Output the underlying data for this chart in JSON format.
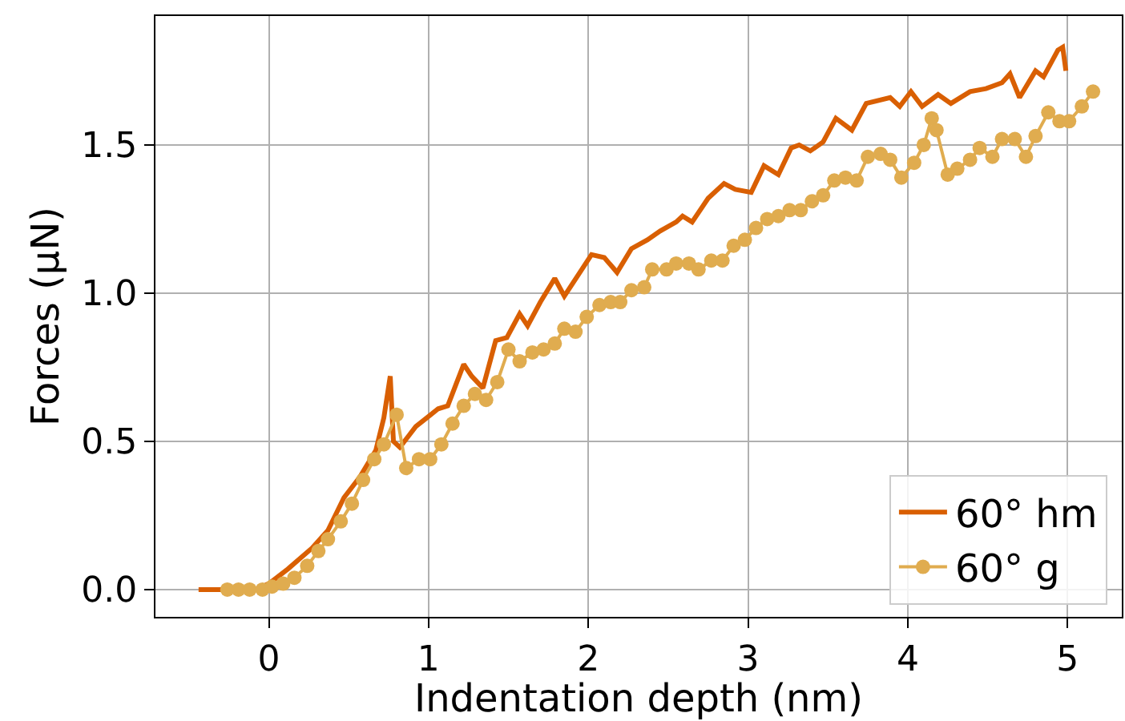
{
  "chart_data": {
    "type": "line",
    "xlabel": "Indentation depth (nm)",
    "ylabel": "Forces (μN)",
    "xlim": [
      -0.71,
      5.34
    ],
    "ylim": [
      -0.092,
      1.935
    ],
    "xticks": [
      0,
      1,
      2,
      3,
      4,
      5
    ],
    "yticks": [
      {
        "value": 0,
        "label": "0.0"
      },
      0.5,
      {
        "value": 1,
        "label": "1.0"
      },
      1.5
    ],
    "grid": true,
    "legend": "bottom right",
    "line_style": "solid",
    "series": [
      {
        "name": "60° hm",
        "color": "#d95f02",
        "marker": "none",
        "x": [
          -0.44,
          -0.28,
          -0.08,
          0,
          0.12,
          0.27,
          0.37,
          0.47,
          0.57,
          0.67,
          0.72,
          0.76,
          0.78,
          0.82,
          0.92,
          0.99,
          1.06,
          1.12,
          1.17,
          1.22,
          1.27,
          1.34,
          1.42,
          1.49,
          1.57,
          1.62,
          1.7,
          1.79,
          1.85,
          2.02,
          2.1,
          2.18,
          2.27,
          2.37,
          2.45,
          2.55,
          2.59,
          2.65,
          2.75,
          2.85,
          2.92,
          3.02,
          3.1,
          3.19,
          3.27,
          3.32,
          3.39,
          3.47,
          3.55,
          3.65,
          3.74,
          3.89,
          3.95,
          4.02,
          4.09,
          4.19,
          4.27,
          4.39,
          4.49,
          4.59,
          4.64,
          4.7,
          4.8,
          4.85,
          4.94,
          4.97,
          4.99
        ],
        "values": [
          0,
          0,
          0,
          0.02,
          0.07,
          0.14,
          0.2,
          0.31,
          0.38,
          0.47,
          0.58,
          0.72,
          0.5,
          0.48,
          0.55,
          0.58,
          0.61,
          0.62,
          0.69,
          0.76,
          0.72,
          0.68,
          0.84,
          0.85,
          0.93,
          0.89,
          0.97,
          1.05,
          0.99,
          1.13,
          1.12,
          1.07,
          1.15,
          1.18,
          1.21,
          1.24,
          1.26,
          1.24,
          1.32,
          1.37,
          1.35,
          1.34,
          1.43,
          1.4,
          1.49,
          1.5,
          1.48,
          1.51,
          1.59,
          1.55,
          1.64,
          1.66,
          1.63,
          1.68,
          1.63,
          1.67,
          1.64,
          1.68,
          1.69,
          1.71,
          1.74,
          1.66,
          1.75,
          1.73,
          1.82,
          1.83,
          1.75
        ]
      },
      {
        "name": "60° g",
        "color": "#e0ac4f",
        "marker": "circle",
        "x": [
          -0.26,
          -0.19,
          -0.12,
          -0.04,
          0.02,
          0.09,
          0.16,
          0.24,
          0.31,
          0.37,
          0.45,
          0.52,
          0.59,
          0.66,
          0.72,
          0.8,
          0.86,
          0.94,
          1.01,
          1.08,
          1.15,
          1.22,
          1.29,
          1.36,
          1.43,
          1.5,
          1.57,
          1.65,
          1.72,
          1.79,
          1.85,
          1.92,
          1.99,
          2.07,
          2.14,
          2.2,
          2.27,
          2.35,
          2.4,
          2.49,
          2.55,
          2.63,
          2.69,
          2.77,
          2.84,
          2.91,
          2.98,
          3.05,
          3.12,
          3.19,
          3.26,
          3.33,
          3.4,
          3.47,
          3.54,
          3.61,
          3.68,
          3.75,
          3.83,
          3.89,
          3.96,
          4.04,
          4.1,
          4.15,
          4.18,
          4.25,
          4.31,
          4.39,
          4.45,
          4.53,
          4.59,
          4.67,
          4.74,
          4.8,
          4.88,
          4.95,
          5.01,
          5.09,
          5.16
        ],
        "values": [
          0,
          0,
          0,
          0,
          0.01,
          0.02,
          0.04,
          0.08,
          0.13,
          0.17,
          0.23,
          0.29,
          0.37,
          0.44,
          0.49,
          0.59,
          0.41,
          0.44,
          0.44,
          0.49,
          0.56,
          0.62,
          0.66,
          0.64,
          0.7,
          0.81,
          0.77,
          0.8,
          0.81,
          0.83,
          0.88,
          0.87,
          0.92,
          0.96,
          0.97,
          0.97,
          1.01,
          1.02,
          1.08,
          1.08,
          1.1,
          1.1,
          1.08,
          1.11,
          1.11,
          1.16,
          1.18,
          1.22,
          1.25,
          1.26,
          1.28,
          1.28,
          1.31,
          1.33,
          1.38,
          1.39,
          1.38,
          1.46,
          1.47,
          1.45,
          1.39,
          1.44,
          1.5,
          1.59,
          1.55,
          1.4,
          1.42,
          1.45,
          1.49,
          1.46,
          1.52,
          1.52,
          1.46,
          1.53,
          1.61,
          1.58,
          1.58,
          1.63,
          1.68
        ]
      }
    ]
  }
}
